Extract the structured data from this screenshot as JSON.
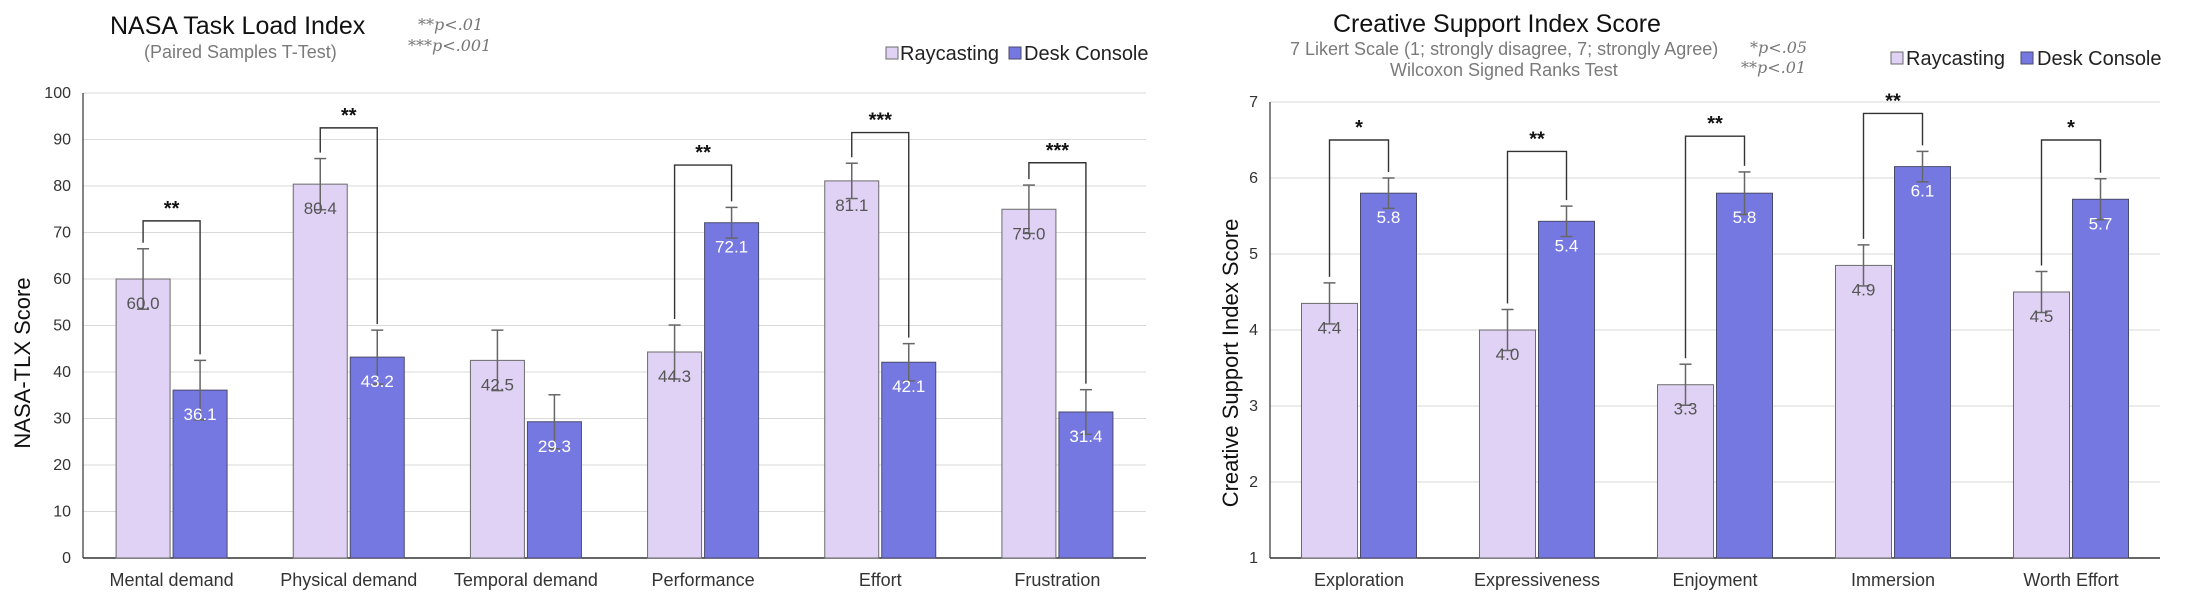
{
  "colors": {
    "raycasting_fill": "#e0d2f5",
    "raycasting_stroke": "#6b6b6b",
    "desk_fill": "#7678e2",
    "desk_stroke": "#4a4a6a",
    "grid": "#d9d9d9",
    "axis": "#333333",
    "error": "#666666",
    "bracket": "#333333"
  },
  "chart_data": [
    {
      "type": "bar",
      "title": "NASA Task Load Index",
      "subtitle": "(Paired Samples T-Test)",
      "notes": [
        "**p<.01",
        "***p<.001"
      ],
      "xlabel": "",
      "ylabel": "NASA-TLX Score",
      "ylim": [
        0,
        100
      ],
      "yticks": [
        0,
        10,
        20,
        30,
        40,
        50,
        60,
        70,
        80,
        90,
        100
      ],
      "grid": true,
      "legend_position": "top-right",
      "categories": [
        "Mental demand",
        "Physical demand",
        "Temporal demand",
        "Performance",
        "Effort",
        "Frustration"
      ],
      "series": [
        {
          "name": "Raycasting",
          "values": [
            60.0,
            80.4,
            42.5,
            44.3,
            81.1,
            75.0
          ],
          "labels": [
            "60.0",
            "80.4",
            "42.5",
            "44.3",
            "81.1",
            "75.0"
          ],
          "error": [
            6.5,
            5.5,
            6.5,
            5.8,
            3.8,
            5.2
          ]
        },
        {
          "name": "Desk Console",
          "values": [
            36.1,
            43.2,
            29.3,
            72.1,
            42.1,
            31.4
          ],
          "labels": [
            "36.1",
            "43.2",
            "29.3",
            "72.1",
            "42.1",
            "31.4"
          ],
          "error": [
            6.4,
            5.8,
            5.8,
            3.3,
            4.0,
            4.8
          ]
        }
      ],
      "significance": [
        "**",
        "**",
        "",
        "**",
        "***",
        "***"
      ],
      "bracket_top": [
        72.5,
        92.5,
        null,
        84.5,
        91.5,
        85.0
      ]
    },
    {
      "type": "bar",
      "title": "Creative Support Index Score",
      "subtitle": "7 Likert Scale (1; strongly disagree, 7; strongly Agree)",
      "subtitle2": "Wilcoxon Signed Ranks Test",
      "notes": [
        "*p<.05",
        "**p<.01"
      ],
      "xlabel": "",
      "ylabel": "Creative Support Index Score",
      "ylim": [
        1,
        7
      ],
      "yticks": [
        1,
        2,
        3,
        4,
        5,
        6,
        7
      ],
      "grid": true,
      "legend_position": "top-right",
      "categories": [
        "Exploration",
        "Expressiveness",
        "Enjoyment",
        "Immersion",
        "Worth Effort"
      ],
      "series": [
        {
          "name": "Raycasting",
          "values": [
            4.35,
            4.0,
            3.28,
            4.85,
            4.5
          ],
          "labels": [
            "4.4",
            "4.0",
            "3.3",
            "4.9",
            "4.5"
          ],
          "error": [
            0.27,
            0.27,
            0.27,
            0.27,
            0.27
          ]
        },
        {
          "name": "Desk Console",
          "values": [
            5.8,
            5.43,
            5.8,
            6.15,
            5.72
          ],
          "labels": [
            "5.8",
            "5.4",
            "5.8",
            "6.1",
            "5.7"
          ],
          "error": [
            0.2,
            0.2,
            0.28,
            0.2,
            0.27
          ]
        }
      ],
      "significance": [
        "*",
        "**",
        "**",
        "**",
        "*"
      ],
      "bracket_top": [
        6.5,
        6.35,
        6.55,
        6.85,
        6.5
      ]
    }
  ]
}
